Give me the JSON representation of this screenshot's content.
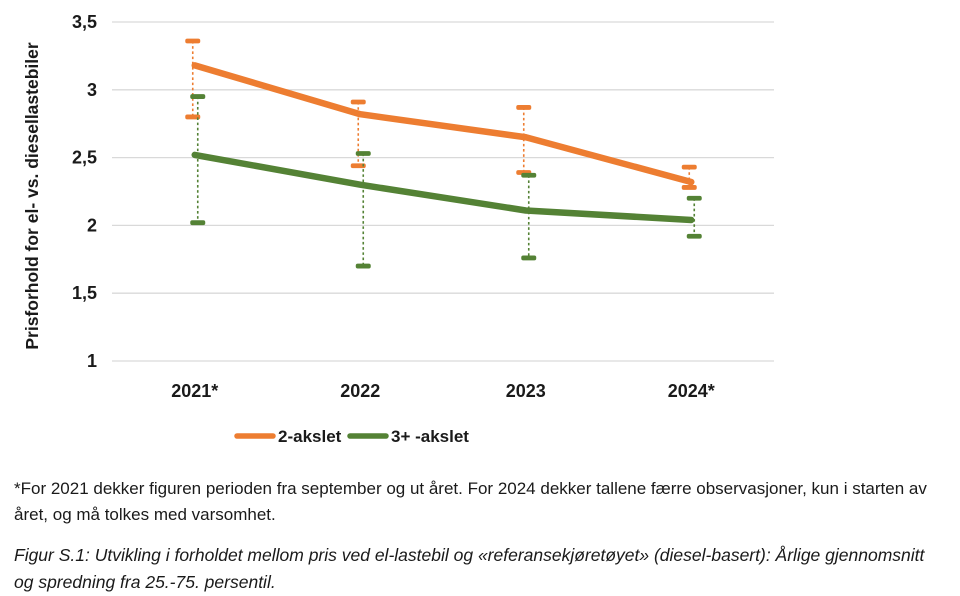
{
  "figure": {
    "footnote": "*For 2021 dekker figuren perioden fra september og ut året. For 2024 dekker tallene færre observasjoner, kun i starten av året, og må tolkes med varsomhet.",
    "caption": "Figur S.1: Utvikling i forholdet mellom pris ved el-lastebil og «referansekjøretøyet» (diesel-basert): Årlige gjennomsnitt og spredning fra 25.-75. persentil."
  },
  "colors": {
    "orange_series": "#ED7D31",
    "green_series": "#548235",
    "gridline": "#D9D9D9",
    "text": "#1a1a1a"
  },
  "chart_data": {
    "type": "line",
    "title": "",
    "xlabel": "",
    "ylabel": "Prisforhold for el- vs. diesellastebiler",
    "categories": [
      "2021*",
      "2022",
      "2023",
      "2024*"
    ],
    "series": [
      {
        "name": "2-akslet",
        "color": "#ED7D31",
        "values": [
          3.18,
          2.82,
          2.65,
          2.32
        ],
        "p25": [
          2.8,
          2.44,
          2.39,
          2.28
        ],
        "p75": [
          3.36,
          2.91,
          2.87,
          2.43
        ]
      },
      {
        "name": "3+ -akslet",
        "color": "#548235",
        "values": [
          2.52,
          2.3,
          2.11,
          2.04
        ],
        "p25": [
          2.02,
          1.7,
          1.76,
          1.92
        ],
        "p75": [
          2.95,
          2.53,
          2.37,
          2.2
        ]
      }
    ],
    "ylim": [
      1.0,
      3.5
    ],
    "yticks": [
      {
        "value": 3.5,
        "label": "3,5"
      },
      {
        "value": 3.0,
        "label": "3"
      },
      {
        "value": 2.5,
        "label": "2,5"
      },
      {
        "value": 2.0,
        "label": "2"
      },
      {
        "value": 1.5,
        "label": "1,5"
      },
      {
        "value": 1.0,
        "label": "1"
      }
    ],
    "grid": true,
    "legend_position": "bottom",
    "error_bars": "dashed whiskers with caps, 25th to 75th percentile"
  }
}
